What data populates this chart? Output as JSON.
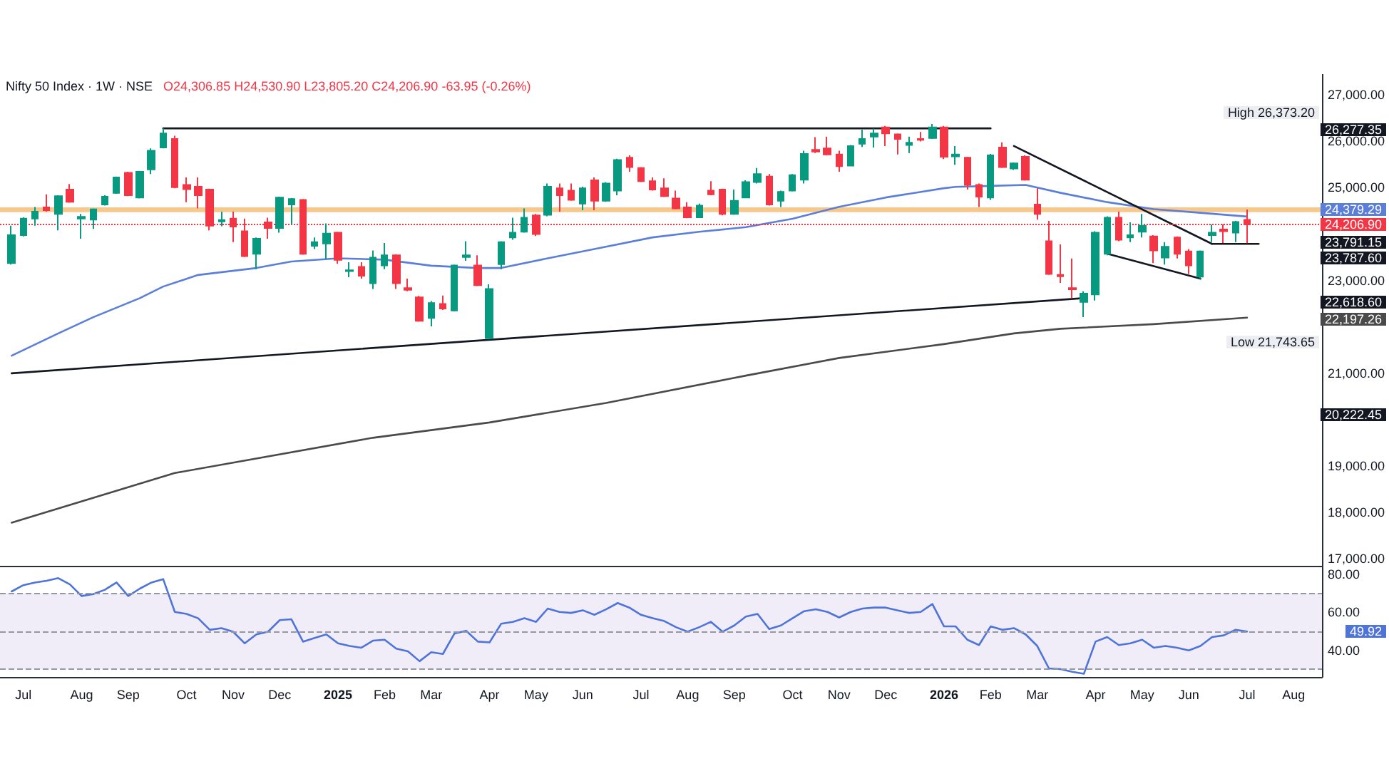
{
  "chart_data": [
    {
      "type": "candlestick",
      "title": "Nifty 50 Index · 1W · NSE",
      "subtitle": "O24,306.85 H24,530.90 L23,805.20 C24,206.90 -63.95 (-0.26%)",
      "x": [
        "2024-06-24",
        "2024-07-01",
        "2024-07-08",
        "2024-07-15",
        "2024-07-22",
        "2024-07-29",
        "2024-08-05",
        "2024-08-12",
        "2024-08-19",
        "2024-08-26",
        "2024-09-02",
        "2024-09-09",
        "2024-09-16",
        "2024-09-23",
        "2024-09-30",
        "2024-10-07",
        "2024-10-14",
        "2024-10-21",
        "2024-10-28",
        "2024-11-04",
        "2024-11-11",
        "2024-11-18",
        "2024-11-25",
        "2024-12-02",
        "2024-12-09",
        "2024-12-16",
        "2024-12-23",
        "2024-12-30",
        "2025-01-06",
        "2025-01-13",
        "2025-01-20",
        "2025-01-27",
        "2025-02-03",
        "2025-02-10",
        "2025-02-17",
        "2025-02-24",
        "2025-03-03",
        "2025-03-10",
        "2025-03-17",
        "2025-03-24",
        "2025-03-31",
        "2025-04-07",
        "2025-04-14",
        "2025-04-21",
        "2025-04-28",
        "2025-05-05",
        "2025-05-12",
        "2025-05-19",
        "2025-05-26",
        "2025-06-02",
        "2025-06-09",
        "2025-06-16",
        "2025-06-23",
        "2025-06-30",
        "2025-07-07",
        "2025-07-14",
        "2025-07-21",
        "2025-07-28",
        "2025-08-04",
        "2025-08-11",
        "2025-08-18",
        "2025-08-25",
        "2025-09-01",
        "2025-09-08",
        "2025-09-15",
        "2025-09-22",
        "2025-09-29",
        "2025-10-06",
        "2025-10-13",
        "2025-10-20",
        "2025-10-27",
        "2025-11-03",
        "2025-11-10",
        "2025-11-17",
        "2025-11-24",
        "2025-12-01",
        "2025-12-08",
        "2025-12-15",
        "2025-12-22",
        "2025-12-29",
        "2026-01-05",
        "2026-01-12",
        "2026-01-19",
        "2026-01-26",
        "2026-02-02",
        "2026-02-09",
        "2026-02-16",
        "2026-02-23",
        "2026-03-02",
        "2026-03-09",
        "2026-03-16",
        "2026-03-23",
        "2026-03-30",
        "2026-04-06",
        "2026-04-13",
        "2026-04-20",
        "2026-04-27",
        "2026-05-04",
        "2026-05-11",
        "2026-05-18",
        "2026-05-25",
        "2026-06-01",
        "2026-06-08",
        "2026-06-15",
        "2026-06-22",
        "2026-06-29",
        "2026-07-06"
      ],
      "ohlc": [
        [
          23375,
          24183,
          23344,
          23980
        ],
        [
          23980,
          24364,
          23950,
          24334
        ],
        [
          24334,
          24586,
          24183,
          24486
        ],
        [
          24576,
          24859,
          24486,
          24516
        ],
        [
          24435,
          24839,
          24082,
          24819
        ],
        [
          24960,
          25081,
          24677,
          24698
        ],
        [
          24334,
          24435,
          23900,
          24374
        ],
        [
          24314,
          24556,
          24112,
          24536
        ],
        [
          24637,
          24839,
          24617,
          24809
        ],
        [
          24890,
          25243,
          24870,
          25223
        ],
        [
          25324,
          25344,
          24819,
          24839
        ],
        [
          24789,
          25364,
          24768,
          25344
        ],
        [
          25394,
          25849,
          25294,
          25798
        ],
        [
          25869,
          26277.35,
          25849,
          26172
        ],
        [
          26051,
          26122,
          24990,
          25011
        ],
        [
          25061,
          25223,
          24688,
          24970
        ],
        [
          25021,
          25223,
          24556,
          24839
        ],
        [
          24960,
          24980,
          24082,
          24183
        ],
        [
          24273,
          24486,
          24172,
          24304
        ],
        [
          24334,
          24486,
          23829,
          24162
        ],
        [
          24061,
          24334,
          23506,
          23526
        ],
        [
          23576,
          23930,
          23243,
          23900
        ],
        [
          24253,
          24354,
          23900,
          24132
        ],
        [
          24132,
          24809,
          24031,
          24789
        ],
        [
          24637,
          24778,
          24213,
          24758
        ],
        [
          24738,
          24758,
          23556,
          23576
        ],
        [
          23748,
          23930,
          23678,
          23829
        ],
        [
          23799,
          24233,
          23465,
          24011
        ],
        [
          24031,
          24051,
          23364,
          23445
        ],
        [
          23203,
          23395,
          23072,
          23223
        ],
        [
          23294,
          23395,
          23041,
          23102
        ],
        [
          22940,
          23647,
          22819,
          23496
        ],
        [
          23324,
          23809,
          23243,
          23546
        ],
        [
          23546,
          23566,
          22819,
          22940
        ],
        [
          22839,
          23041,
          22769,
          22799
        ],
        [
          22637,
          22667,
          22112,
          22132
        ],
        [
          22193,
          22556,
          22011,
          22516
        ],
        [
          22496,
          22678,
          22364,
          22395
        ],
        [
          22354,
          23344,
          22334,
          23324
        ],
        [
          23506,
          23849,
          23425,
          23546
        ],
        [
          23324,
          23546,
          22880,
          22900
        ],
        [
          21758,
          22920,
          21743.65,
          22819
        ],
        [
          23354,
          23849,
          23243,
          23829
        ],
        [
          23930,
          24354,
          23880,
          24031
        ],
        [
          24051,
          24556,
          24031,
          24354
        ],
        [
          24405,
          24435,
          23960,
          24001
        ],
        [
          24415,
          25092,
          24384,
          25021
        ],
        [
          24990,
          25092,
          24486,
          24839
        ],
        [
          24940,
          25092,
          24718,
          24738
        ],
        [
          24657,
          25021,
          24516,
          24990
        ],
        [
          25162,
          25223,
          24516,
          24718
        ],
        [
          24718,
          25122,
          24698,
          25092
        ],
        [
          24940,
          25627,
          24839,
          25597
        ],
        [
          25647,
          25698,
          25344,
          25445
        ],
        [
          25425,
          25445,
          25122,
          25142
        ],
        [
          25142,
          25223,
          24940,
          24960
        ],
        [
          24990,
          25203,
          24799,
          24819
        ],
        [
          24768,
          24940,
          24536,
          24556
        ],
        [
          24576,
          24688,
          24344,
          24364
        ],
        [
          24364,
          24657,
          24354,
          24617
        ],
        [
          24940,
          25142,
          24839,
          24859
        ],
        [
          24960,
          24980,
          24405,
          24435
        ],
        [
          24435,
          24960,
          24415,
          24718
        ],
        [
          24789,
          25162,
          24778,
          25122
        ],
        [
          25122,
          25425,
          25092,
          25294
        ],
        [
          25243,
          25294,
          24617,
          24637
        ],
        [
          24718,
          24940,
          24586,
          24910
        ],
        [
          24940,
          25294,
          24920,
          25273
        ],
        [
          25172,
          25798,
          25092,
          25728
        ],
        [
          25819,
          26091,
          25748,
          25778
        ],
        [
          25849,
          26101,
          25698,
          25718
        ],
        [
          25718,
          25798,
          25344,
          25465
        ],
        [
          25475,
          25920,
          25465,
          25900
        ],
        [
          25950,
          26253,
          25879,
          26051
        ],
        [
          26101,
          26273,
          25869,
          26172
        ],
        [
          26303,
          26334,
          25900,
          26172
        ],
        [
          26152,
          26172,
          25718,
          26051
        ],
        [
          25920,
          26101,
          25748,
          25970
        ],
        [
          26051,
          26203,
          26000,
          26031
        ],
        [
          26071,
          26373.2,
          26051,
          26303
        ],
        [
          26303,
          26334,
          25617,
          25667
        ],
        [
          25677,
          25900,
          25496,
          25718
        ],
        [
          25647,
          25667,
          24960,
          25061
        ],
        [
          25061,
          25092,
          24586,
          24809
        ],
        [
          24789,
          25728,
          24738,
          25698
        ],
        [
          25869,
          25980,
          25425,
          25445
        ],
        [
          25415,
          25546,
          25384,
          25526
        ],
        [
          25667,
          25698,
          25152,
          25172
        ],
        [
          24637,
          24990,
          24314,
          24435
        ],
        [
          23849,
          24284,
          23122,
          23142
        ],
        [
          23122,
          23778,
          22950,
          23092
        ],
        [
          22839,
          23475,
          22617,
          22809
        ],
        [
          22536,
          22768,
          22213,
          22718
        ],
        [
          22698,
          24061,
          22567,
          24031
        ],
        [
          23576,
          24384,
          23546,
          24354
        ],
        [
          24354,
          24486,
          23849,
          23880
        ],
        [
          23930,
          24253,
          23829,
          23980
        ],
        [
          24051,
          24435,
          23930,
          24183
        ],
        [
          23950,
          23980,
          23375,
          23647
        ],
        [
          23496,
          23829,
          23344,
          23728
        ],
        [
          23930,
          23950,
          23475,
          23576
        ],
        [
          23627,
          23678,
          23142,
          23324
        ],
        [
          23082,
          23647,
          23041,
          23627
        ],
        [
          23980,
          24203,
          23829,
          24031
        ],
        [
          24102,
          24213,
          23809,
          24061
        ],
        [
          24031,
          24284,
          23829,
          24263
        ],
        [
          24306.85,
          24530.9,
          23805.2,
          24206.9
        ]
      ],
      "series": [
        {
          "type": "line",
          "color": "#5b7fd8",
          "x": [
            "2024-06-24",
            "2024-07-22",
            "2024-08-12",
            "2024-09-09",
            "2024-09-23",
            "2024-10-14",
            "2024-11-18",
            "2024-12-09",
            "2025-01-06",
            "2025-02-03",
            "2025-03-03",
            "2025-03-31",
            "2025-04-14",
            "2025-05-12",
            "2025-06-09",
            "2025-07-14",
            "2025-08-11",
            "2025-09-08",
            "2025-10-06",
            "2025-11-03",
            "2025-12-01",
            "2026-01-05",
            "2026-01-12",
            "2026-02-02",
            "2026-02-23",
            "2026-03-16",
            "2026-04-13",
            "2026-05-11",
            "2026-06-08",
            "2026-07-06"
          ],
          "values": [
            21380,
            21860,
            22210,
            22620,
            22870,
            23120,
            23270,
            23410,
            23480,
            23450,
            23320,
            23270,
            23270,
            23480,
            23680,
            23930,
            24050,
            24150,
            24330,
            24590,
            24790,
            24990,
            25020,
            25040,
            25060,
            24890,
            24690,
            24540,
            24460,
            24380
          ]
        },
        {
          "type": "line",
          "color": "#4a4a4a",
          "x": [
            "2024-06-24",
            "2024-09-30",
            "2025-01-27",
            "2025-04-07",
            "2025-06-16",
            "2025-09-08",
            "2025-11-03",
            "2026-01-05",
            "2026-02-16",
            "2026-03-16",
            "2026-05-11",
            "2026-07-06"
          ],
          "values": [
            17780,
            18850,
            19610,
            19940,
            20360,
            20950,
            21330,
            21630,
            21860,
            21960,
            22060,
            22200
          ]
        },
        {
          "type": "line",
          "color": "#131722",
          "x": [
            "2024-09-23",
            "2026-02-02"
          ],
          "values": [
            26280,
            26280
          ]
        },
        {
          "type": "line",
          "color": "#131722",
          "x": [
            "2024-06-24",
            "2026-03-30"
          ],
          "values": [
            21000,
            22620
          ]
        },
        {
          "type": "line",
          "color": "#131722",
          "x": [
            "2026-02-16",
            "2026-06-15"
          ],
          "values": [
            25900,
            23790
          ]
        },
        {
          "type": "line",
          "color": "#131722",
          "x": [
            "2026-04-13",
            "2026-06-08"
          ],
          "values": [
            23580,
            23040
          ]
        },
        {
          "type": "line",
          "color": "#131722",
          "x": [
            "2026-06-15",
            "2026-07-13"
          ],
          "values": [
            23790,
            23790
          ]
        }
      ],
      "ref_lines": [
        {
          "axis": "y",
          "value": 24206.9,
          "label": "24,206.90",
          "color": "#f23645",
          "line_style": "dotted"
        }
      ],
      "bands": [
        {
          "axis": "y",
          "from": 24475,
          "to": 24576,
          "color": "#f6c88c"
        }
      ],
      "annotations": [
        "High 26,373.20",
        "26,277.35",
        "24,379.29",
        "23,791.15",
        "23,787.60",
        "22,618.60",
        "22,197.26",
        "Low 21,743.65",
        "20,222.45"
      ],
      "xlim": [
        "2024-06-17",
        "2026-08-20"
      ],
      "ylim": [
        16850,
        27450
      ],
      "yticks": [
        {
          "value": 17000,
          "label": "17,000.00"
        },
        {
          "value": 18000,
          "label": "18,000.00"
        },
        {
          "value": 19000,
          "label": "19,000.00"
        },
        {
          "value": 21000,
          "label": "21,000.00"
        },
        {
          "value": 23000,
          "label": "23,000.00"
        },
        {
          "value": 25000,
          "label": "25,000.00"
        },
        {
          "value": 26000,
          "label": "26,000.00"
        },
        {
          "value": 27000,
          "label": "27,000.00"
        }
      ],
      "tick_labels": "y",
      "marker": "none",
      "line_style": "solid"
    },
    {
      "type": "line",
      "x": [
        "2024-06-24",
        "2024-07-01",
        "2024-07-08",
        "2024-07-15",
        "2024-07-22",
        "2024-07-29",
        "2024-08-05",
        "2024-08-12",
        "2024-08-19",
        "2024-08-26",
        "2024-09-02",
        "2024-09-09",
        "2024-09-16",
        "2024-09-23",
        "2024-09-30",
        "2024-10-07",
        "2024-10-14",
        "2024-10-21",
        "2024-10-28",
        "2024-11-04",
        "2024-11-11",
        "2024-11-18",
        "2024-11-25",
        "2024-12-02",
        "2024-12-09",
        "2024-12-16",
        "2024-12-23",
        "2024-12-30",
        "2025-01-06",
        "2025-01-13",
        "2025-01-20",
        "2025-01-27",
        "2025-02-03",
        "2025-02-10",
        "2025-02-17",
        "2025-02-24",
        "2025-03-03",
        "2025-03-10",
        "2025-03-17",
        "2025-03-24",
        "2025-03-31",
        "2025-04-07",
        "2025-04-14",
        "2025-04-21",
        "2025-04-28",
        "2025-05-05",
        "2025-05-12",
        "2025-05-19",
        "2025-05-26",
        "2025-06-02",
        "2025-06-09",
        "2025-06-16",
        "2025-06-23",
        "2025-06-30",
        "2025-07-07",
        "2025-07-14",
        "2025-07-21",
        "2025-07-28",
        "2025-08-04",
        "2025-08-11",
        "2025-08-18",
        "2025-08-25",
        "2025-09-01",
        "2025-09-08",
        "2025-09-15",
        "2025-09-22",
        "2025-09-29",
        "2025-10-06",
        "2025-10-13",
        "2025-10-20",
        "2025-10-27",
        "2025-11-03",
        "2025-11-10",
        "2025-11-17",
        "2025-11-24",
        "2025-12-01",
        "2025-12-08",
        "2025-12-15",
        "2025-12-22",
        "2025-12-29",
        "2026-01-05",
        "2026-01-12",
        "2026-01-19",
        "2026-01-26",
        "2026-02-02",
        "2026-02-09",
        "2026-02-16",
        "2026-02-23",
        "2026-03-02",
        "2026-03-09",
        "2026-03-16",
        "2026-03-23",
        "2026-03-30",
        "2026-04-06",
        "2026-04-13",
        "2026-04-20",
        "2026-04-27",
        "2026-05-04",
        "2026-05-11",
        "2026-05-18",
        "2026-05-25",
        "2026-06-01",
        "2026-06-08",
        "2026-06-15",
        "2026-06-22",
        "2026-06-29",
        "2026-07-06"
      ],
      "series": [
        {
          "color": "#4f74d9",
          "values": [
            71,
            74.3,
            75.7,
            76.6,
            78,
            74.7,
            68.6,
            69.6,
            71.9,
            75.7,
            68.6,
            72.5,
            75.7,
            77.5,
            60.2,
            59.2,
            56.9,
            50.8,
            51.7,
            49.8,
            43.7,
            48.4,
            49.8,
            55.9,
            56.4,
            44.6,
            46.5,
            48.4,
            43.7,
            42.3,
            41.4,
            45.1,
            45.6,
            40.9,
            39.5,
            34.3,
            39,
            38.1,
            48.9,
            50.3,
            44.6,
            44.2,
            54,
            55,
            56.9,
            55,
            62,
            60.2,
            59.7,
            61.1,
            58.7,
            61.6,
            64.9,
            62.5,
            58.7,
            56.9,
            55.4,
            52.2,
            49.8,
            52.2,
            55,
            49.8,
            53.1,
            57.8,
            59.2,
            51.2,
            53.1,
            56.9,
            60.6,
            61.6,
            60.2,
            57.3,
            60.2,
            62,
            62.5,
            62.5,
            61.1,
            59.7,
            60.2,
            64.4,
            52.6,
            52.6,
            45.6,
            42.8,
            52.6,
            50.8,
            51.7,
            48.4,
            42.3,
            30.5,
            30.1,
            28.7,
            27.7,
            44.6,
            47,
            42.8,
            43.7,
            45.6,
            41.4,
            42.3,
            41.4,
            40,
            42.3,
            47,
            47.9,
            50.8,
            49.9
          ]
        }
      ],
      "annotations": [
        "49.92"
      ],
      "ref_lines": [
        {
          "axis": "y",
          "value": 70,
          "color": "#9598a1",
          "line_style": "dashed"
        },
        {
          "axis": "y",
          "value": 50,
          "color": "#9598a1",
          "line_style": "dashed"
        },
        {
          "axis": "y",
          "value": 30,
          "color": "#9598a1",
          "line_style": "dashed"
        }
      ],
      "bands": [
        {
          "axis": "y",
          "from": 30,
          "to": 70,
          "color": "#f0edf8"
        }
      ],
      "xlim": [
        "2024-06-17",
        "2026-08-20"
      ],
      "xticks": [
        {
          "value": "2024-07-01",
          "label": "Jul"
        },
        {
          "value": "2024-08-05",
          "label": "Aug"
        },
        {
          "value": "2024-09-02",
          "label": "Sep"
        },
        {
          "value": "2024-10-07",
          "label": "Oct"
        },
        {
          "value": "2024-11-04",
          "label": "Nov"
        },
        {
          "value": "2024-12-02",
          "label": "Dec"
        },
        {
          "value": "2025-01-06",
          "label": "2025"
        },
        {
          "value": "2025-02-03",
          "label": "Feb"
        },
        {
          "value": "2025-03-03",
          "label": "Mar"
        },
        {
          "value": "2025-04-07",
          "label": "Apr"
        },
        {
          "value": "2025-05-05",
          "label": "May"
        },
        {
          "value": "2025-06-02",
          "label": "Jun"
        },
        {
          "value": "2025-07-07",
          "label": "Jul"
        },
        {
          "value": "2025-08-04",
          "label": "Aug"
        },
        {
          "value": "2025-09-01",
          "label": "Sep"
        },
        {
          "value": "2025-10-06",
          "label": "Oct"
        },
        {
          "value": "2025-11-03",
          "label": "Nov"
        },
        {
          "value": "2025-12-01",
          "label": "Dec"
        },
        {
          "value": "2026-01-05",
          "label": "2026"
        },
        {
          "value": "2026-02-02",
          "label": "Feb"
        },
        {
          "value": "2026-03-02",
          "label": "Mar"
        },
        {
          "value": "2026-04-06",
          "label": "Apr"
        },
        {
          "value": "2026-05-04",
          "label": "May"
        },
        {
          "value": "2026-06-01",
          "label": "Jun"
        },
        {
          "value": "2026-07-06",
          "label": "Jul"
        },
        {
          "value": "2026-08-03",
          "label": "Aug"
        }
      ],
      "ylim": [
        26,
        84.5
      ],
      "yticks": [
        {
          "value": 40,
          "label": "40.00"
        },
        {
          "value": 60,
          "label": "60.00"
        },
        {
          "value": 80,
          "label": "80.00"
        }
      ],
      "marker": "none",
      "line_style": "solid"
    }
  ]
}
